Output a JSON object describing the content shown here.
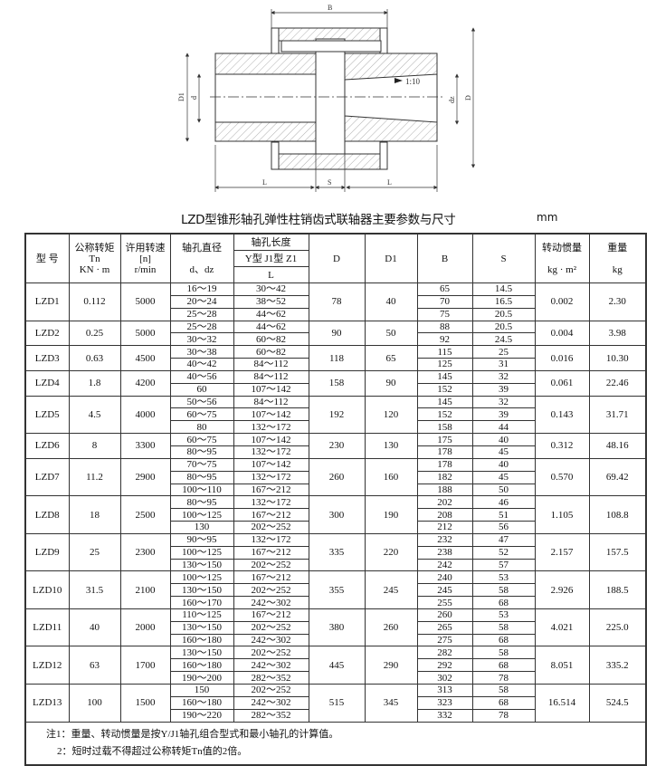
{
  "drawing": {
    "labels": {
      "B": "B",
      "D1": "D1",
      "d": "d",
      "dz": "dz",
      "D": "D",
      "taper": "1:10",
      "L_left": "L",
      "S": "S",
      "L_right": "L"
    }
  },
  "title": "LZD型锥形轴孔弹性柱销齿式联轴器主要参数与尺寸",
  "unit": "mm",
  "table": {
    "headers": {
      "model": "型  号",
      "torque": [
        "公称转矩",
        "Tn",
        "KN · m"
      ],
      "speed": [
        "许用转速",
        "[n]",
        "r/min"
      ],
      "bore_dia": [
        "轴孔直径",
        "d、dz"
      ],
      "bore_len": "轴孔长度",
      "bore_types": "Y型  J1型  Z1",
      "L": "L",
      "D": "D",
      "D1": "D1",
      "B": "B",
      "S": "S",
      "inertia": [
        "转动惯量",
        "kg · m²"
      ],
      "weight": [
        "重量",
        "kg"
      ]
    },
    "rows": [
      {
        "model": "LZD1",
        "torque": "0.112",
        "speed": "5000",
        "d": [
          "16～19",
          "20～24",
          "25～28"
        ],
        "L": [
          "30～42",
          "38～52",
          "44～62"
        ],
        "D": "78",
        "D1": "40",
        "B": [
          "65",
          "70",
          "75"
        ],
        "S": [
          "14.5",
          "16.5",
          "20.5"
        ],
        "inertia": "0.002",
        "weight": "2.30"
      },
      {
        "model": "LZD2",
        "torque": "0.25",
        "speed": "5000",
        "d": [
          "25～28",
          "30～32"
        ],
        "L": [
          "44～62",
          "60～82"
        ],
        "D": "90",
        "D1": "50",
        "B": [
          "88",
          "92"
        ],
        "S": [
          "20.5",
          "24.5"
        ],
        "inertia": "0.004",
        "weight": "3.98"
      },
      {
        "model": "LZD3",
        "torque": "0.63",
        "speed": "4500",
        "d": [
          "30～38",
          "40～42"
        ],
        "L": [
          "60～82",
          "84～112"
        ],
        "D": "118",
        "D1": "65",
        "B": [
          "115",
          "125"
        ],
        "S": [
          "25",
          "31"
        ],
        "inertia": "0.016",
        "weight": "10.30"
      },
      {
        "model": "LZD4",
        "torque": "1.8",
        "speed": "4200",
        "d": [
          "40～56",
          "60"
        ],
        "L": [
          "84～112",
          "107～142"
        ],
        "D": "158",
        "D1": "90",
        "B": [
          "145",
          "152"
        ],
        "S": [
          "32",
          "39"
        ],
        "inertia": "0.061",
        "weight": "22.46"
      },
      {
        "model": "LZD5",
        "torque": "4.5",
        "speed": "4000",
        "d": [
          "50～56",
          "60～75",
          "80"
        ],
        "L": [
          "84～112",
          "107～142",
          "132～172"
        ],
        "D": "192",
        "D1": "120",
        "B": [
          "145",
          "152",
          "158"
        ],
        "S": [
          "32",
          "39",
          "44"
        ],
        "inertia": "0.143",
        "weight": "31.71"
      },
      {
        "model": "LZD6",
        "torque": "8",
        "speed": "3300",
        "d": [
          "60～75",
          "80～95"
        ],
        "L": [
          "107～142",
          "132～172"
        ],
        "D": "230",
        "D1": "130",
        "B": [
          "175",
          "178"
        ],
        "S": [
          "40",
          "45"
        ],
        "inertia": "0.312",
        "weight": "48.16"
      },
      {
        "model": "LZD7",
        "torque": "11.2",
        "speed": "2900",
        "d": [
          "70～75",
          "80～95",
          "100～110"
        ],
        "L": [
          "107～142",
          "132～172",
          "167～212"
        ],
        "D": "260",
        "D1": "160",
        "B": [
          "178",
          "182",
          "188"
        ],
        "S": [
          "40",
          "45",
          "50"
        ],
        "inertia": "0.570",
        "weight": "69.42"
      },
      {
        "model": "LZD8",
        "torque": "18",
        "speed": "2500",
        "d": [
          "80～95",
          "100～125",
          "130"
        ],
        "L": [
          "132～172",
          "167～212",
          "202～252"
        ],
        "D": "300",
        "D1": "190",
        "B": [
          "202",
          "208",
          "212"
        ],
        "S": [
          "46",
          "51",
          "56"
        ],
        "inertia": "1.105",
        "weight": "108.8"
      },
      {
        "model": "LZD9",
        "torque": "25",
        "speed": "2300",
        "d": [
          "90～95",
          "100～125",
          "130～150"
        ],
        "L": [
          "132～172",
          "167～212",
          "202～252"
        ],
        "D": "335",
        "D1": "220",
        "B": [
          "232",
          "238",
          "242"
        ],
        "S": [
          "47",
          "52",
          "57"
        ],
        "inertia": "2.157",
        "weight": "157.5"
      },
      {
        "model": "LZD10",
        "torque": "31.5",
        "speed": "2100",
        "d": [
          "100～125",
          "130～150",
          "160～170"
        ],
        "L": [
          "167～212",
          "202～252",
          "242～302"
        ],
        "D": "355",
        "D1": "245",
        "B": [
          "240",
          "245",
          "255"
        ],
        "S": [
          "53",
          "58",
          "68"
        ],
        "inertia": "2.926",
        "weight": "188.5"
      },
      {
        "model": "LZD11",
        "torque": "40",
        "speed": "2000",
        "d": [
          "110～125",
          "130～150",
          "160～180"
        ],
        "L": [
          "167～212",
          "202～252",
          "242～302"
        ],
        "D": "380",
        "D1": "260",
        "B": [
          "260",
          "265",
          "275"
        ],
        "S": [
          "53",
          "58",
          "68"
        ],
        "inertia": "4.021",
        "weight": "225.0"
      },
      {
        "model": "LZD12",
        "torque": "63",
        "speed": "1700",
        "d": [
          "130～150",
          "160～180",
          "190～200"
        ],
        "L": [
          "202～252",
          "242～302",
          "282～352"
        ],
        "D": "445",
        "D1": "290",
        "B": [
          "282",
          "292",
          "302"
        ],
        "S": [
          "58",
          "68",
          "78"
        ],
        "inertia": "8.051",
        "weight": "335.2"
      },
      {
        "model": "LZD13",
        "torque": "100",
        "speed": "1500",
        "d": [
          "150",
          "160～180",
          "190～220"
        ],
        "L": [
          "202～252",
          "242～302",
          "282～352"
        ],
        "D": "515",
        "D1": "345",
        "B": [
          "313",
          "323",
          "332"
        ],
        "S": [
          "58",
          "68",
          "78"
        ],
        "inertia": "16.514",
        "weight": "524.5"
      }
    ],
    "notes": [
      "注1：重量、转动惯量是按Y/J1轴孔组合型式和最小轴孔的计算值。",
      "2：短时过载不得超过公称转矩Tn值的2倍。"
    ]
  }
}
